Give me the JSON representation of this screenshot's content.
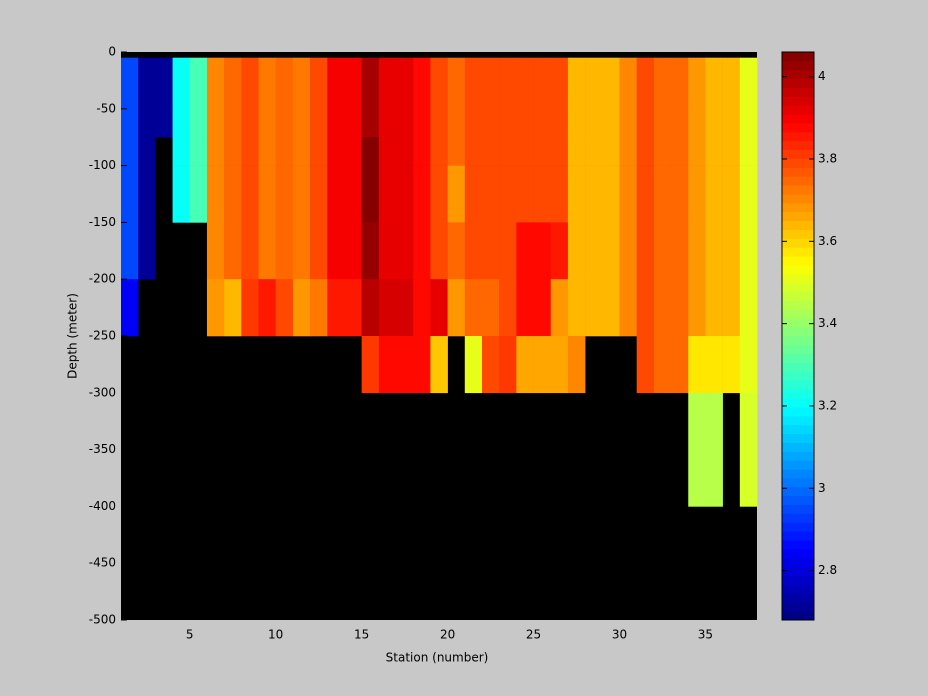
{
  "chart_data": {
    "type": "heatmap",
    "xlabel": "Station (number)",
    "ylabel": "Depth (meter)",
    "colormap": "jet",
    "background": "#000000",
    "x_edges": [
      1,
      2,
      3,
      4,
      5,
      6,
      7,
      8,
      9,
      10,
      11,
      12,
      13,
      14,
      15,
      16,
      17,
      18,
      19,
      20,
      21,
      22,
      23,
      24,
      25,
      26,
      27,
      28,
      29,
      30,
      31,
      32,
      33,
      34,
      35,
      36,
      37,
      38
    ],
    "y_edges": [
      -5,
      -50,
      -75,
      -100,
      -150,
      -200,
      -250,
      -300,
      -400
    ],
    "values": [
      [
        2.95,
        2.72,
        2.72,
        3.2,
        3.3,
        3.7,
        3.75,
        3.78,
        3.72,
        3.75,
        3.72,
        3.8,
        3.9,
        3.9,
        4.0,
        3.92,
        3.92,
        3.88,
        3.78,
        3.75,
        3.78,
        3.78,
        3.8,
        3.8,
        3.8,
        3.78,
        3.65,
        3.65,
        3.65,
        3.7,
        3.78,
        3.75,
        3.75,
        3.68,
        3.65,
        3.65,
        3.5
      ],
      [
        2.95,
        2.72,
        2.72,
        3.2,
        3.3,
        3.7,
        3.75,
        3.78,
        3.72,
        3.75,
        3.72,
        3.8,
        3.9,
        3.9,
        4.0,
        3.92,
        3.92,
        3.88,
        3.78,
        3.75,
        3.78,
        3.78,
        3.8,
        3.8,
        3.8,
        3.78,
        3.65,
        3.65,
        3.65,
        3.7,
        3.78,
        3.75,
        3.75,
        3.68,
        3.65,
        3.65,
        3.5
      ],
      [
        2.95,
        2.72,
        null,
        3.2,
        3.3,
        3.7,
        3.75,
        3.78,
        3.72,
        3.75,
        3.72,
        3.8,
        3.9,
        3.9,
        4.05,
        3.92,
        3.92,
        3.88,
        3.78,
        3.75,
        3.78,
        3.78,
        3.8,
        3.8,
        3.8,
        3.78,
        3.65,
        3.65,
        3.65,
        3.7,
        3.78,
        3.75,
        3.75,
        3.68,
        3.65,
        3.65,
        3.5
      ],
      [
        2.95,
        2.72,
        null,
        3.2,
        3.3,
        3.7,
        3.75,
        3.78,
        3.72,
        3.75,
        3.72,
        3.8,
        3.9,
        3.9,
        4.05,
        3.92,
        3.92,
        3.88,
        3.78,
        3.68,
        3.78,
        3.78,
        3.8,
        3.8,
        3.8,
        3.78,
        3.65,
        3.65,
        3.65,
        3.7,
        3.78,
        3.75,
        3.75,
        3.68,
        3.65,
        3.65,
        3.5
      ],
      [
        2.95,
        2.72,
        null,
        null,
        null,
        3.7,
        3.75,
        3.78,
        3.72,
        3.75,
        3.72,
        3.8,
        3.9,
        3.9,
        4.02,
        3.92,
        3.92,
        3.88,
        3.78,
        3.75,
        3.78,
        3.78,
        3.8,
        3.88,
        3.88,
        3.85,
        3.65,
        3.65,
        3.65,
        3.7,
        3.78,
        3.75,
        3.75,
        3.68,
        3.65,
        3.65,
        3.5
      ],
      [
        2.85,
        null,
        null,
        null,
        null,
        3.68,
        3.65,
        3.82,
        3.85,
        3.8,
        3.68,
        3.72,
        3.85,
        3.85,
        3.98,
        3.95,
        3.95,
        3.88,
        3.92,
        3.68,
        3.75,
        3.75,
        3.8,
        3.88,
        3.88,
        3.68,
        3.65,
        3.65,
        3.65,
        3.7,
        3.78,
        3.75,
        3.75,
        3.68,
        3.65,
        3.65,
        3.5
      ],
      [
        null,
        null,
        null,
        null,
        null,
        null,
        null,
        null,
        null,
        null,
        null,
        null,
        null,
        null,
        3.82,
        3.88,
        3.88,
        3.88,
        3.62,
        null,
        3.5,
        3.78,
        3.82,
        3.66,
        3.66,
        3.66,
        3.7,
        null,
        null,
        null,
        3.8,
        3.75,
        3.75,
        3.58,
        3.58,
        3.58,
        3.5
      ],
      [
        null,
        null,
        null,
        null,
        null,
        null,
        null,
        null,
        null,
        null,
        null,
        null,
        null,
        null,
        null,
        null,
        null,
        null,
        null,
        null,
        null,
        null,
        null,
        null,
        null,
        null,
        null,
        null,
        null,
        null,
        null,
        null,
        null,
        3.45,
        3.45,
        null,
        3.48
      ]
    ],
    "xlim": [
      1,
      38
    ],
    "ylim": [
      -500,
      0
    ],
    "xticks": [
      5,
      10,
      15,
      20,
      25,
      30,
      35
    ],
    "yticks": [
      0,
      -50,
      -100,
      -150,
      -200,
      -250,
      -300,
      -350,
      -400,
      -450,
      -500
    ],
    "colorbar": {
      "clim": [
        2.68,
        4.06
      ],
      "ticks": [
        2.8,
        3,
        3.2,
        3.4,
        3.6,
        3.8,
        4
      ]
    }
  }
}
